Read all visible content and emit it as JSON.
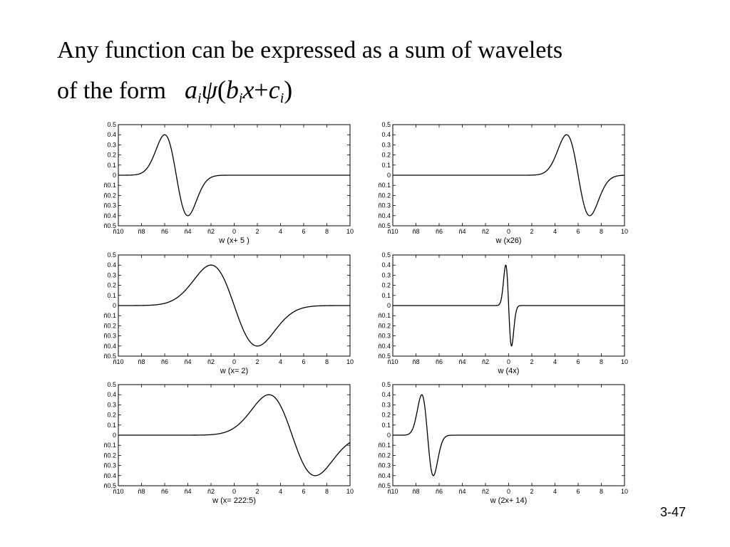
{
  "slide": {
    "title_line1": "Any function can be expressed as a sum of wavelets",
    "title_line2": "of the form",
    "formula": {
      "a": "a",
      "i": "i",
      "psi": "ψ",
      "open": "(",
      "b": "b",
      "x": "x",
      "plus": "+",
      "c": "c",
      "close": ")"
    },
    "slide_number": "3-47"
  },
  "chart_data": [
    {
      "type": "line",
      "caption": "w (x+ 5 )",
      "xlim": [
        -10,
        10
      ],
      "ylim": [
        -0.5,
        0.5
      ],
      "function": "wavelet",
      "b": 1,
      "c": 5
    },
    {
      "type": "line",
      "caption": "w (x26)",
      "xlim": [
        -10,
        10
      ],
      "ylim": [
        -0.5,
        0.5
      ],
      "function": "wavelet",
      "b": 1,
      "c": -6
    },
    {
      "type": "line",
      "caption": "w (x= 2)",
      "xlim": [
        -10,
        10
      ],
      "ylim": [
        -0.5,
        0.5
      ],
      "function": "wavelet",
      "b": 0.5,
      "c": 0
    },
    {
      "type": "line",
      "caption": "w (4x)",
      "xlim": [
        -10,
        10
      ],
      "ylim": [
        -0.5,
        0.5
      ],
      "function": "wavelet",
      "b": 4,
      "c": 0
    },
    {
      "type": "line",
      "caption": "w (x= 222:5)",
      "xlim": [
        -10,
        10
      ],
      "ylim": [
        -0.5,
        0.5
      ],
      "function": "wavelet",
      "b": 0.5,
      "c": -2.5
    },
    {
      "type": "line",
      "caption": "w (2x+ 14)",
      "xlim": [
        -10,
        10
      ],
      "ylim": [
        -0.5,
        0.5
      ],
      "function": "wavelet",
      "b": 2,
      "c": 14
    }
  ],
  "axes": {
    "yticks": [
      {
        "label": "0.5",
        "value": 0.5
      },
      {
        "label": "0.4",
        "value": 0.4
      },
      {
        "label": "0.3",
        "value": 0.3
      },
      {
        "label": "0.2",
        "value": 0.2
      },
      {
        "label": "0.1",
        "value": 0.1
      },
      {
        "label": "0",
        "value": 0
      },
      {
        "label": "ñ0.1",
        "value": -0.1
      },
      {
        "label": "ñ0.2",
        "value": -0.2
      },
      {
        "label": "ñ0.3",
        "value": -0.3
      },
      {
        "label": "ñ0.4",
        "value": -0.4
      },
      {
        "label": "ñ0.5",
        "value": -0.5
      }
    ],
    "xticks": [
      {
        "label": "ñ10",
        "value": -10
      },
      {
        "label": "ñ8",
        "value": -8
      },
      {
        "label": "ñ6",
        "value": -6
      },
      {
        "label": "ñ4",
        "value": -4
      },
      {
        "label": "ñ2",
        "value": -2
      },
      {
        "label": "0",
        "value": 0
      },
      {
        "label": "2",
        "value": 2
      },
      {
        "label": "4",
        "value": 4
      },
      {
        "label": "6",
        "value": 6
      },
      {
        "label": "8",
        "value": 8
      },
      {
        "label": "10",
        "value": 10
      }
    ]
  }
}
